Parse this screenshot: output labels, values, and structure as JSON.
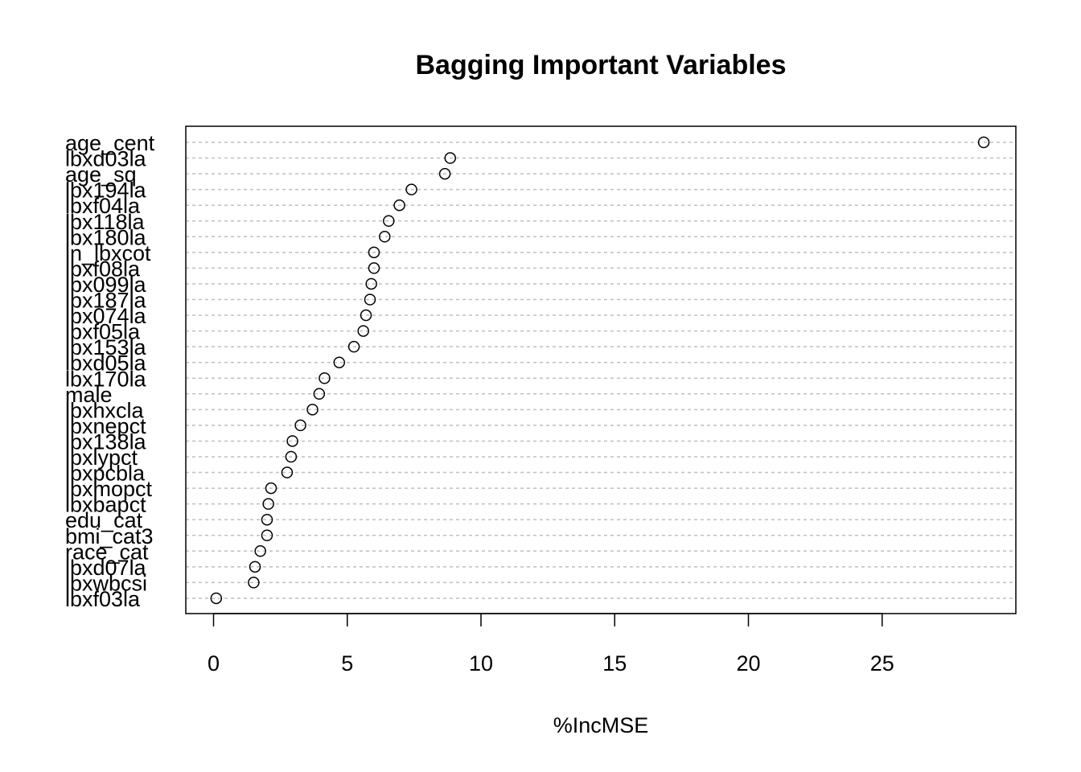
{
  "chart_data": {
    "type": "scatter",
    "title": "Bagging Important Variables",
    "xlabel": "%IncMSE",
    "ylabel": "",
    "xlim": [
      -1,
      30
    ],
    "xticks": [
      0,
      5,
      10,
      15,
      20,
      25
    ],
    "grid": "horizontal dashed",
    "legend": "none",
    "variables": [
      "age_cent",
      "lbxd03la",
      "age_sq",
      "lbx194la",
      "lbxf04la",
      "lbx118la",
      "lbx180la",
      "ln_lbxcot",
      "lbxf08la",
      "lbx099la",
      "lbx187la",
      "lbx074la",
      "lbxf05la",
      "lbx153la",
      "lbxd05la",
      "lbx170la",
      "male",
      "lbxhxcla",
      "lbxnepct",
      "lbx138la",
      "lbxlypct",
      "lbxpcbla",
      "lbxmopct",
      "lbxbapct",
      "edu_cat",
      "bmi_cat3",
      "race_cat",
      "lbxd07la",
      "lbxwbcsi",
      "lbxf03la"
    ],
    "values": [
      28.8,
      8.85,
      8.65,
      7.4,
      6.95,
      6.55,
      6.4,
      6.0,
      6.0,
      5.9,
      5.85,
      5.7,
      5.6,
      5.25,
      4.7,
      4.15,
      3.95,
      3.7,
      3.25,
      2.95,
      2.9,
      2.75,
      2.15,
      2.05,
      2.0,
      2.0,
      1.75,
      1.55,
      1.5,
      0.1
    ]
  }
}
